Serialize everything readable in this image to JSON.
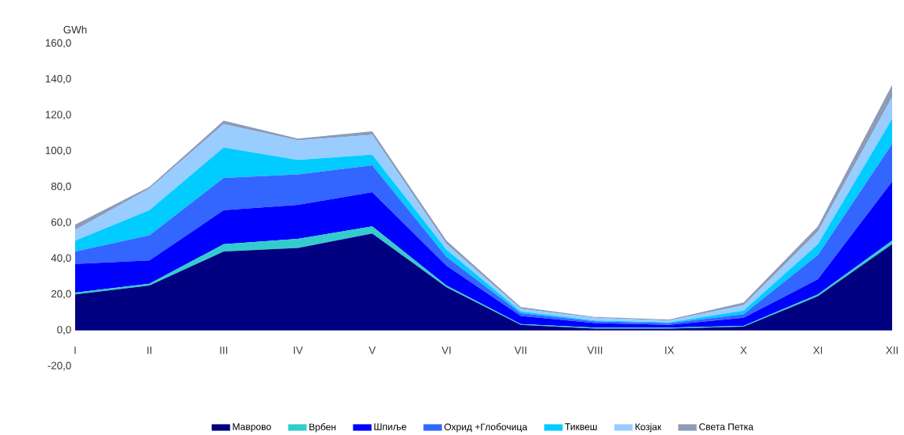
{
  "chart_data": {
    "type": "area",
    "stacked": true,
    "ylabel": "GWh",
    "legend": "bottom",
    "categories": [
      "I",
      "II",
      "III",
      "IV",
      "V",
      "VI",
      "VII",
      "VIII",
      "IX",
      "X",
      "XI",
      "XII"
    ],
    "ylim": [
      -20,
      160
    ],
    "yticks": [
      {
        "value": -20,
        "label": "-20,0"
      },
      {
        "value": 0,
        "label": "0,0"
      },
      {
        "value": 20,
        "label": "20,0"
      },
      {
        "value": 40,
        "label": "40,0"
      },
      {
        "value": 60,
        "label": "60,0"
      },
      {
        "value": 80,
        "label": "80,0"
      },
      {
        "value": 100,
        "label": "100,0"
      },
      {
        "value": 120,
        "label": "120,0"
      },
      {
        "value": 140,
        "label": "140,0"
      },
      {
        "value": 160,
        "label": "160,0"
      }
    ],
    "series": [
      {
        "name": "Маврово",
        "color": "#000080",
        "values": [
          20,
          25,
          44,
          46,
          54,
          24,
          3,
          1,
          1,
          2,
          19,
          48
        ]
      },
      {
        "name": "Врбен",
        "color": "#33cccc",
        "values": [
          1,
          1,
          4,
          5,
          4,
          1,
          0.5,
          0.5,
          0.5,
          0.5,
          1,
          2
        ]
      },
      {
        "name": "Шпиље",
        "color": "#0000ff",
        "values": [
          16,
          13,
          19,
          19,
          19,
          11,
          4.5,
          2.5,
          1.5,
          4.5,
          8.5,
          33
        ]
      },
      {
        "name": "Охрид +Глобочица",
        "color": "#3366ff",
        "values": [
          7,
          14,
          18,
          17,
          15,
          5,
          1.5,
          1,
          1,
          2,
          13.5,
          21
        ]
      },
      {
        "name": "Тиквеш",
        "color": "#00ccff",
        "values": [
          6,
          14,
          17,
          8,
          6,
          4,
          1,
          0.5,
          0.5,
          2,
          6,
          14
        ]
      },
      {
        "name": "Козјак",
        "color": "#99ccff",
        "values": [
          6,
          12,
          13,
          11,
          11,
          3,
          1.5,
          1.5,
          1,
          3,
          7,
          12
        ]
      },
      {
        "name": "Света Петка",
        "color": "#8c9cb8",
        "values": [
          3,
          1,
          2,
          1,
          2,
          2,
          1,
          0.5,
          0.5,
          1.5,
          3,
          7
        ]
      }
    ]
  }
}
